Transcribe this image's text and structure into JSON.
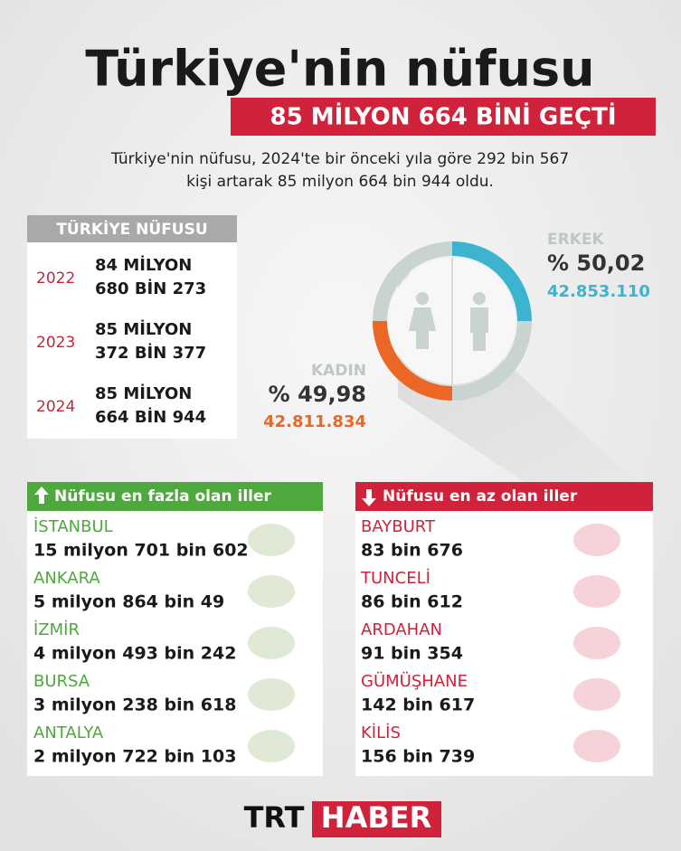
{
  "header": {
    "title": "Türkiye'nin nüfusu",
    "subtitle": "85 MİLYON 664 BİNİ GEÇTİ",
    "description": [
      "Türkiye'nin nüfusu, 2024'te bir önceki yıla göre 292 bin 567",
      "kişi artarak 85 milyon 664 bin 944 oldu."
    ]
  },
  "population": {
    "title": "TÜRKİYE NÜFUSU",
    "rows": [
      {
        "year": "2022",
        "value": [
          "84 MİLYON",
          "680 BİN 273"
        ]
      },
      {
        "year": "2023",
        "value": [
          "85 MİLYON",
          "372 BİN 377"
        ]
      },
      {
        "year": "2024",
        "value": [
          "85 MİLYON",
          "664 BİN 944"
        ]
      }
    ]
  },
  "gender": {
    "male": {
      "label": "ERKEK",
      "percent": "% 50,02",
      "count": "42.853.110"
    },
    "female": {
      "label": "KADIN",
      "percent": "% 49,98",
      "count": "42.811.834"
    }
  },
  "most": {
    "title": "Nüfusu en fazla olan iller",
    "items": [
      {
        "name": "İSTANBUL",
        "value": "15 milyon 701 bin 602"
      },
      {
        "name": "ANKARA",
        "value": "5 milyon 864 bin 49"
      },
      {
        "name": "İZMİR",
        "value": "4 milyon 493 bin 242"
      },
      {
        "name": "BURSA",
        "value": "3 milyon 238 bin 618"
      },
      {
        "name": "ANTALYA",
        "value": "2 milyon 722 bin 103"
      }
    ]
  },
  "least": {
    "title": "Nüfusu en az olan iller",
    "items": [
      {
        "name": "BAYBURT",
        "value": "83 bin 676"
      },
      {
        "name": "TUNCELİ",
        "value": "86 bin 612"
      },
      {
        "name": "ARDAHAN",
        "value": "91 bin 354"
      },
      {
        "name": "GÜMÜŞHANE",
        "value": "142 bin 617"
      },
      {
        "name": "KİLİS",
        "value": "156 bin 739"
      }
    ]
  },
  "footer": {
    "logo_left": "TRT",
    "logo_right": "HABER"
  }
}
